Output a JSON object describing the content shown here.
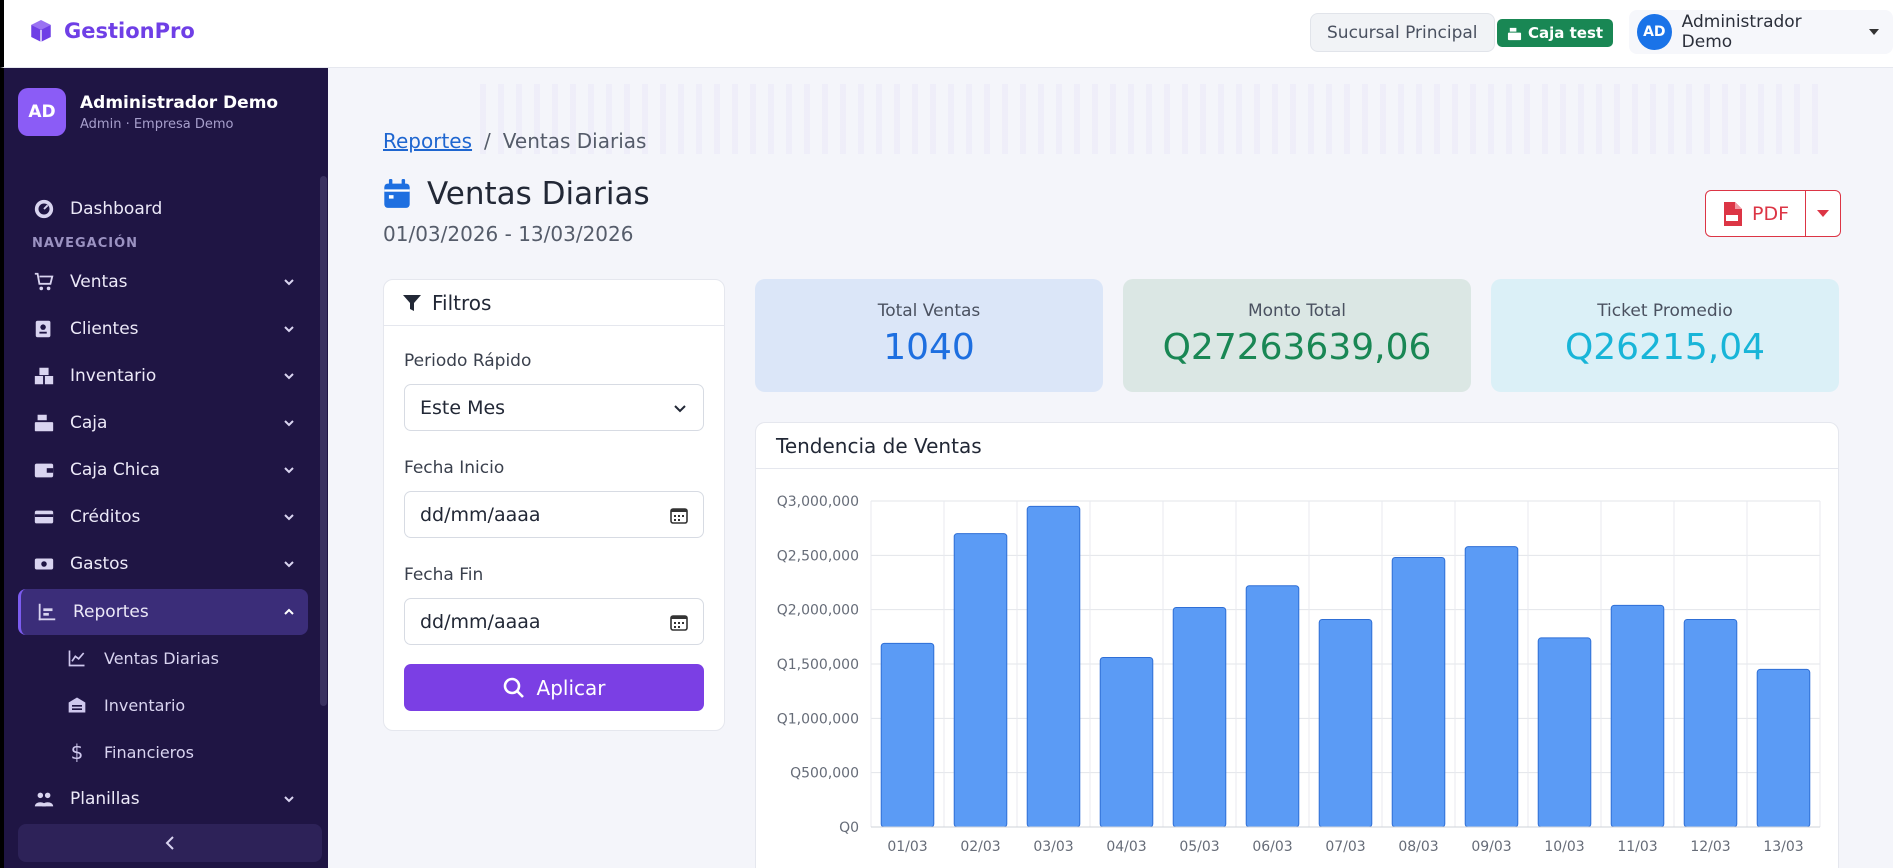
{
  "app": {
    "brand": "GestionPro",
    "branch": "Sucursal Principal",
    "caja_badge": "Caja test",
    "user_initials": "AD",
    "user_name": "Administrador Demo"
  },
  "sidebar": {
    "user_initials": "AD",
    "user_name": "Administrador Demo",
    "user_role": "Admin · Empresa Demo",
    "dashboard": "Dashboard",
    "section": "NAVEGACIÓN",
    "items": [
      {
        "label": "Ventas",
        "icon": "cart-icon"
      },
      {
        "label": "Clientes",
        "icon": "contact-card-icon"
      },
      {
        "label": "Inventario",
        "icon": "boxes-icon"
      },
      {
        "label": "Caja",
        "icon": "cash-register-icon"
      },
      {
        "label": "Caja Chica",
        "icon": "wallet-icon"
      },
      {
        "label": "Créditos",
        "icon": "credit-card-icon"
      },
      {
        "label": "Gastos",
        "icon": "money-icon"
      },
      {
        "label": "Reportes",
        "icon": "chart-bars-icon"
      }
    ],
    "sub_items": [
      {
        "label": "Ventas Diarias",
        "icon": "line-chart-icon"
      },
      {
        "label": "Inventario",
        "icon": "warehouse-icon"
      },
      {
        "label": "Financieros",
        "icon": "dollar-icon"
      }
    ],
    "planillas": "Planillas"
  },
  "breadcrumb": {
    "parent": "Reportes",
    "separator": "/",
    "current": "Ventas Diarias"
  },
  "page": {
    "title": "Ventas Diarias",
    "date_range": "01/03/2026 - 13/03/2026",
    "pdf_label": "PDF"
  },
  "filters": {
    "title": "Filtros",
    "period_label": "Periodo Rápido",
    "period_value": "Este Mes",
    "start_label": "Fecha Inicio",
    "start_placeholder": "dd/mm/aaaa",
    "end_label": "Fecha Fin",
    "end_placeholder": "dd/mm/aaaa",
    "apply_label": "Aplicar"
  },
  "stats": [
    {
      "label": "Total Ventas",
      "value": "1040",
      "color": "#1e6fe0",
      "bg": "#dbe6f8"
    },
    {
      "label": "Monto Total",
      "value": "Q27263639,06",
      "color": "#198754",
      "bg": "#dbe7e4"
    },
    {
      "label": "Ticket Promedio",
      "value": "Q26215,04",
      "color": "#18b5d8",
      "bg": "#dbf0f7"
    }
  ],
  "chart": {
    "title": "Tendencia de Ventas"
  },
  "chart_data": {
    "type": "bar",
    "title": "Tendencia de Ventas",
    "categories": [
      "01/03",
      "02/03",
      "03/03",
      "04/03",
      "05/03",
      "06/03",
      "07/03",
      "08/03",
      "09/03",
      "10/03",
      "11/03",
      "12/03",
      "13/03"
    ],
    "values": [
      1690000,
      2700000,
      2950000,
      1560000,
      2020000,
      2220000,
      1910000,
      2480000,
      2580000,
      1740000,
      2040000,
      1910000,
      1450000
    ],
    "y_ticks": [
      "Q0",
      "Q500,000",
      "Q1,000,000",
      "Q1,500,000",
      "Q2,000,000",
      "Q2,500,000",
      "Q3,000,000"
    ],
    "ylim": [
      0,
      3000000
    ],
    "bar_color": "#5b9bf5",
    "bar_border": "#2f6fd6",
    "grid": true,
    "xlabel": "",
    "ylabel": ""
  }
}
